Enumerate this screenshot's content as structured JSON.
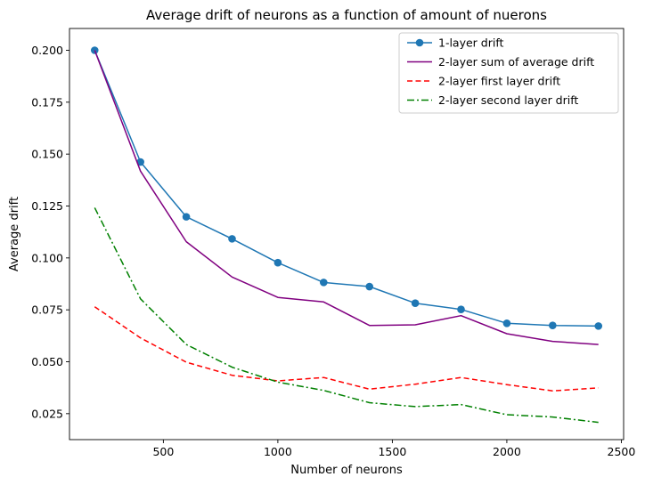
{
  "chart_data": {
    "type": "line",
    "title": "Average drift of neurons as a function of amount of nuerons",
    "xlabel": "Number of neurons",
    "ylabel": "Average drift",
    "x": [
      200,
      400,
      600,
      800,
      1000,
      1200,
      1400,
      1600,
      1800,
      2000,
      2200,
      2400
    ],
    "xlim": [
      90,
      2510
    ],
    "ylim": [
      0.0125,
      0.2105
    ],
    "xticks": [
      500,
      1000,
      1500,
      2000,
      2500
    ],
    "xtick_labels": [
      "500",
      "1000",
      "1500",
      "2000",
      "2500"
    ],
    "yticks": [
      0.025,
      0.05,
      0.075,
      0.1,
      0.125,
      0.15,
      0.175,
      0.2
    ],
    "ytick_labels": [
      "0.025",
      "0.050",
      "0.075",
      "0.100",
      "0.125",
      "0.150",
      "0.175",
      "0.200"
    ],
    "grid": false,
    "legend_position": "top-right",
    "series": [
      {
        "name": "1-layer drift",
        "color": "#1f77b4",
        "style": "solid",
        "marker": "circle",
        "values": [
          0.2,
          0.1462,
          0.1198,
          0.1092,
          0.0977,
          0.0882,
          0.0862,
          0.0782,
          0.0752,
          0.0685,
          0.0675,
          0.0672
        ]
      },
      {
        "name": "2-layer sum of average drift",
        "color": "#800080",
        "style": "solid",
        "marker": "none",
        "values": [
          0.2,
          0.1418,
          0.1078,
          0.0908,
          0.081,
          0.0788,
          0.0675,
          0.0678,
          0.0722,
          0.0635,
          0.0598,
          0.0583
        ]
      },
      {
        "name": "2-layer first layer drift",
        "color": "#ff0000",
        "style": "dashed",
        "marker": "none",
        "values": [
          0.0765,
          0.0615,
          0.0498,
          0.0435,
          0.0408,
          0.0424,
          0.0368,
          0.0392,
          0.0424,
          0.039,
          0.036,
          0.0374
        ]
      },
      {
        "name": "2-layer second layer drift",
        "color": "#008000",
        "style": "dashdot",
        "marker": "none",
        "values": [
          0.1242,
          0.0803,
          0.0583,
          0.0474,
          0.0402,
          0.0362,
          0.0303,
          0.0284,
          0.0294,
          0.0245,
          0.0234,
          0.0208
        ]
      }
    ]
  }
}
